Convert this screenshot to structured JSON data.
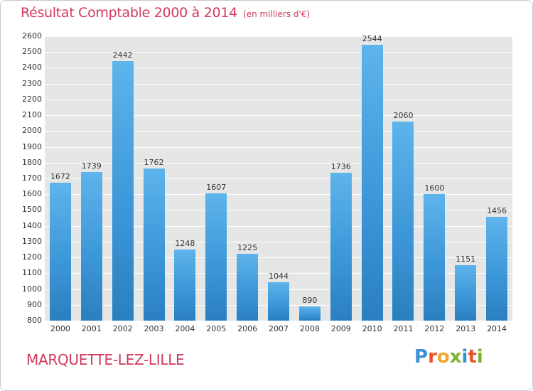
{
  "title": "Résultat Comptable 2000 à 2014",
  "subtitle": "(en milliers d'€)",
  "commune": "MARQUETTE-LEZ-LILLE",
  "logo": {
    "text": "Proxiti",
    "colors": [
      "#3a8fd6",
      "#e8532c",
      "#f2a52b",
      "#7ab42f",
      "#3a8fd6",
      "#e8532c",
      "#7ab42f"
    ]
  },
  "colors": {
    "accent": "#d03a5c",
    "bar": "#3d98d9",
    "plot_bg": "#e6e6e6"
  },
  "chart_data": {
    "type": "bar",
    "title": "Résultat Comptable 2000 à 2014",
    "subtitle": "(en milliers d'€)",
    "xlabel": "",
    "ylabel": "",
    "categories": [
      "2000",
      "2001",
      "2002",
      "2003",
      "2004",
      "2005",
      "2006",
      "2007",
      "2008",
      "2009",
      "2010",
      "2011",
      "2012",
      "2013",
      "2014"
    ],
    "values": [
      1672,
      1739,
      2442,
      1762,
      1248,
      1607,
      1225,
      1044,
      890,
      1736,
      2544,
      2060,
      1600,
      1151,
      1456
    ],
    "ylim": [
      800,
      2600
    ],
    "yticks": [
      800,
      900,
      1000,
      1100,
      1200,
      1300,
      1400,
      1500,
      1600,
      1700,
      1800,
      1900,
      2000,
      2100,
      2200,
      2300,
      2400,
      2500,
      2600
    ],
    "grid": true,
    "legend": "none"
  }
}
